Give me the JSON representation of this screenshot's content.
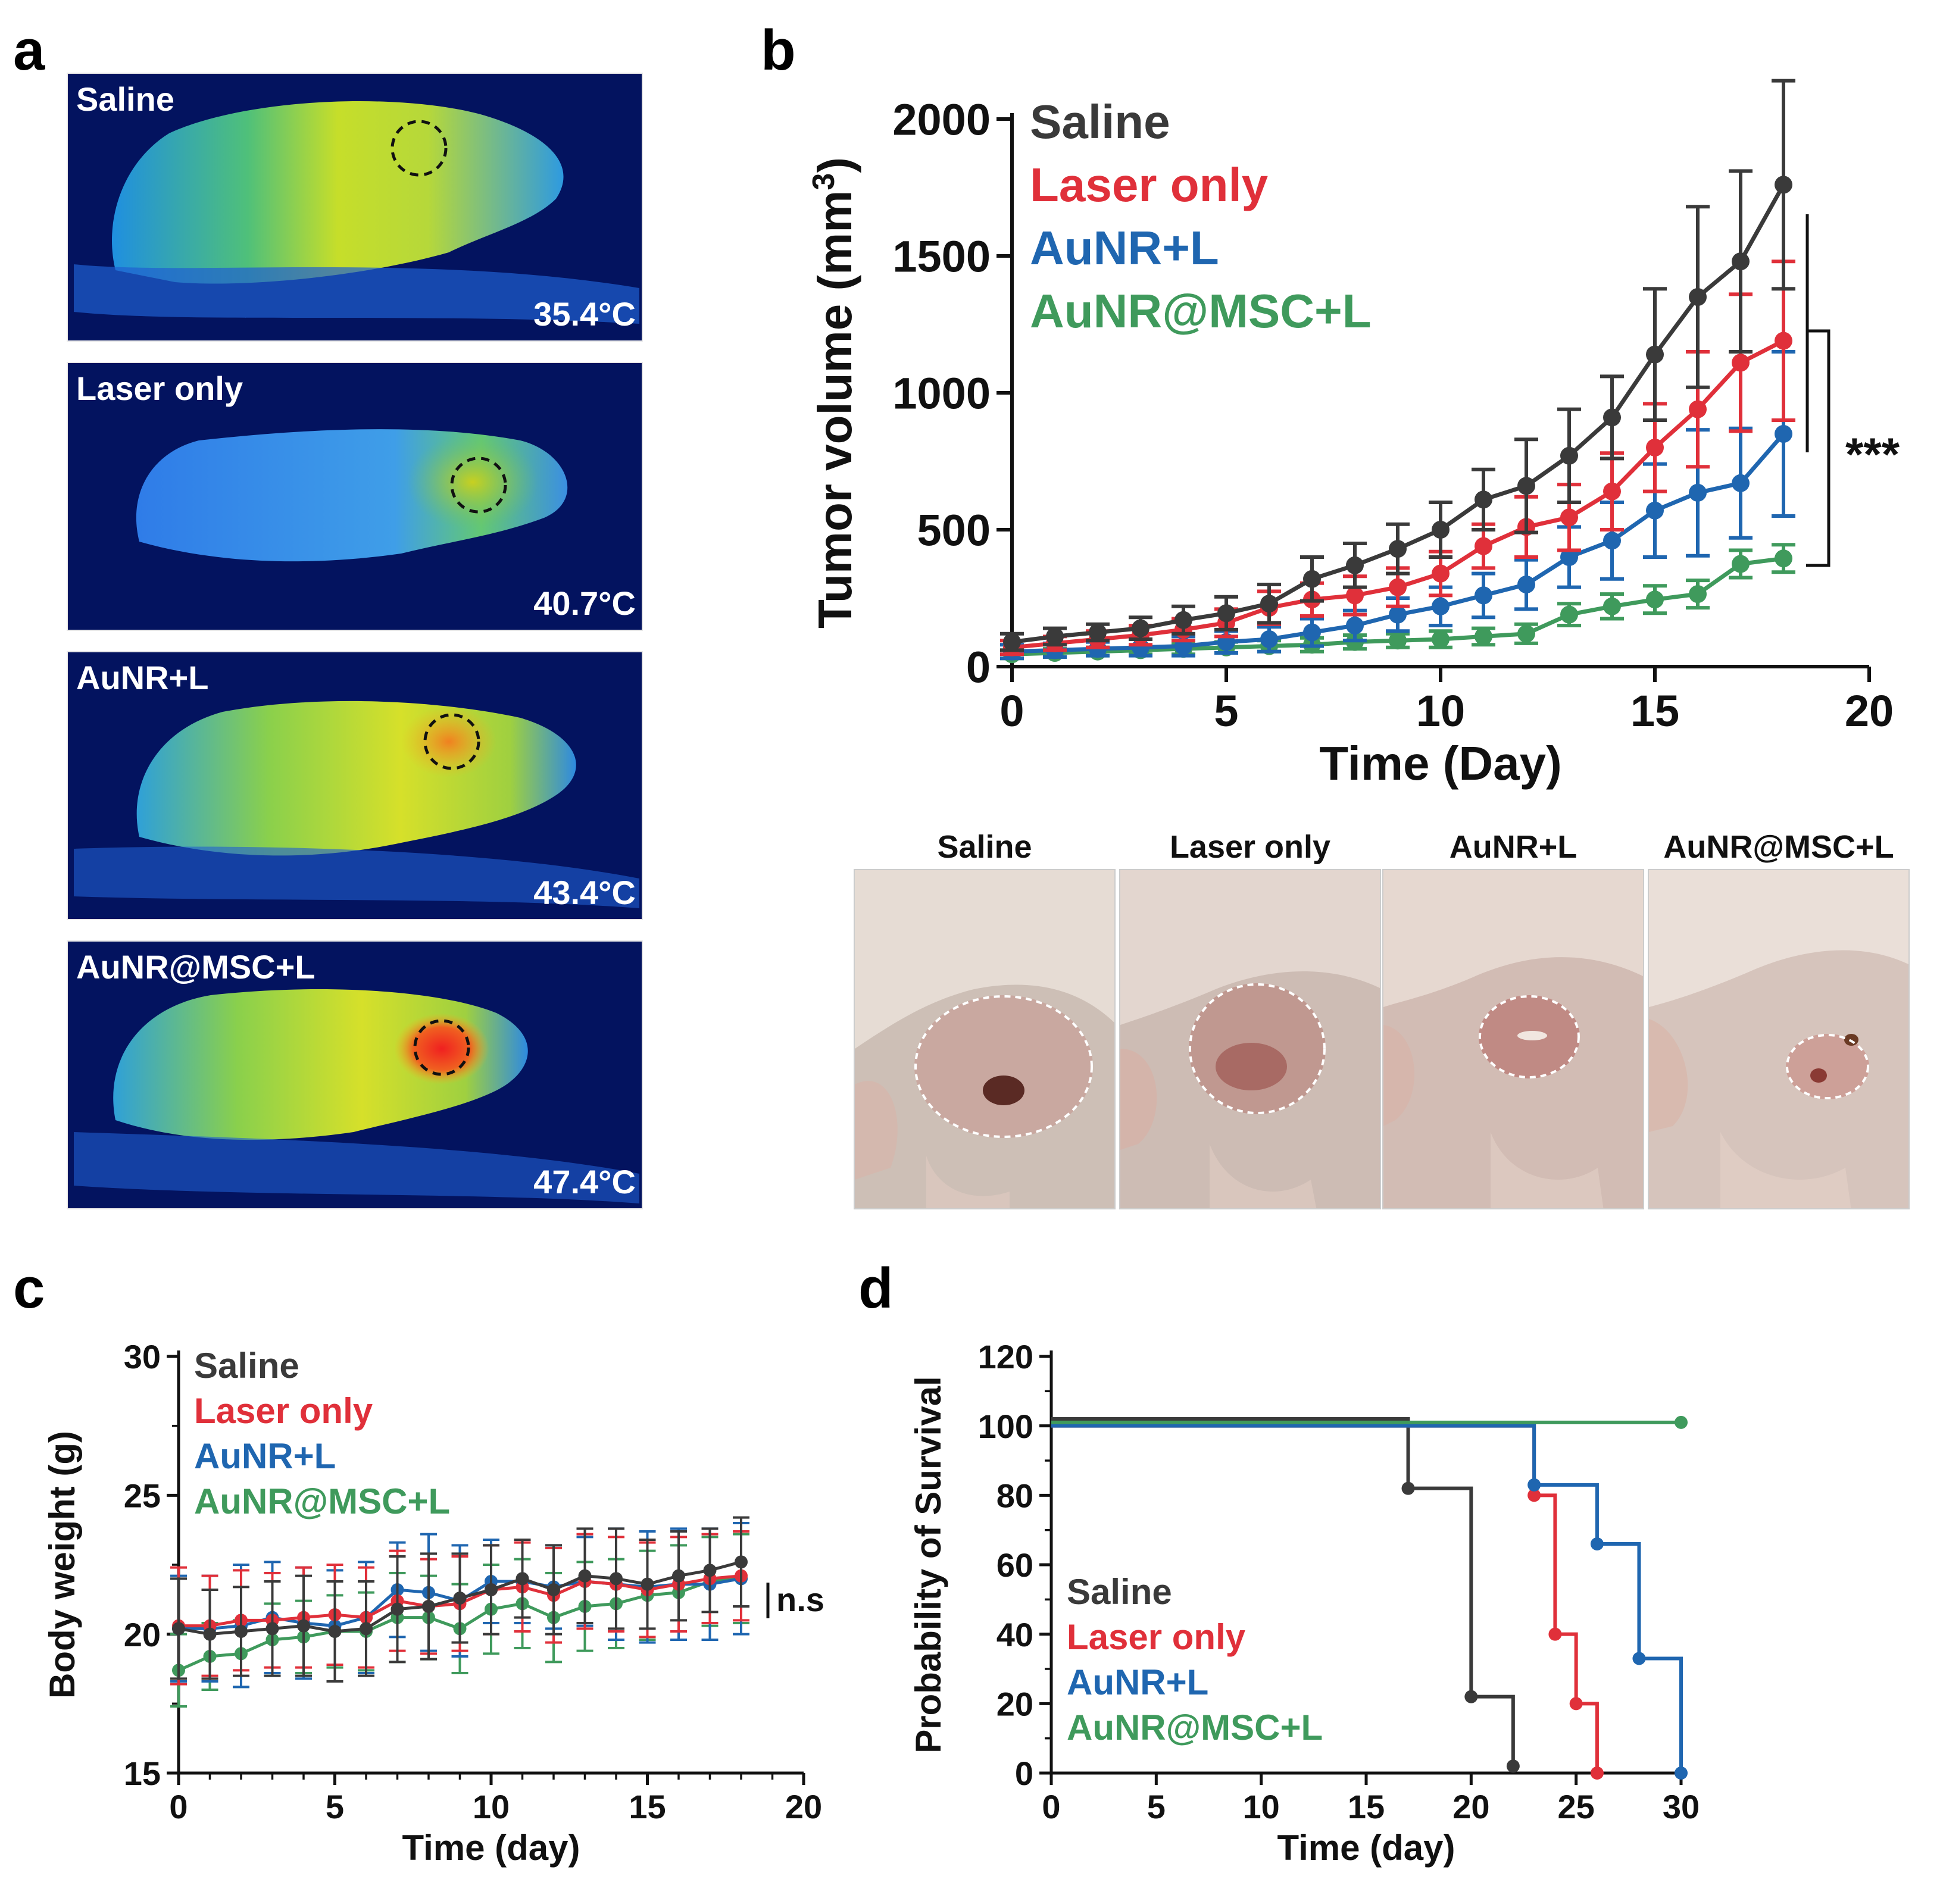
{
  "panels": {
    "a": "a",
    "b": "b",
    "c": "c",
    "d": "d"
  },
  "thermal_images": [
    {
      "label": "Saline",
      "temperature": "35.4°C"
    },
    {
      "label": "Laser only",
      "temperature": "40.7°C"
    },
    {
      "label": "AuNR+L",
      "temperature": "43.4°C"
    },
    {
      "label": "AuNR@MSC+L",
      "temperature": "47.4°C"
    }
  ],
  "photos": [
    {
      "label": "Saline"
    },
    {
      "label": "Laser only"
    },
    {
      "label": "AuNR+L"
    },
    {
      "label": "AuNR@MSC+L"
    }
  ],
  "colors": {
    "saline": "#3a3a3a",
    "laser": "#e0303a",
    "aunr": "#1f66b0",
    "msc": "#3f9a5c"
  },
  "chart_data": [
    {
      "id": "tumor-volume",
      "type": "line",
      "xlabel": "Time (Day)",
      "ylabel": "Tumor volume (mm³)",
      "ylabel_main": "Tumor volume (mm",
      "ylabel_sup": "3",
      "ylabel_close": ")",
      "xlim": [
        0,
        20
      ],
      "ylim": [
        0,
        2000
      ],
      "xticks": [
        0,
        5,
        10,
        15,
        20
      ],
      "yticks": [
        0,
        500,
        1000,
        1500,
        2000
      ],
      "x": [
        0,
        1,
        2,
        3,
        4,
        5,
        6,
        7,
        8,
        9,
        10,
        11,
        12,
        13,
        14,
        15,
        16,
        17,
        18
      ],
      "series": [
        {
          "name": "Saline",
          "color": "#3a3a3a",
          "values": [
            90,
            110,
            125,
            140,
            170,
            195,
            230,
            320,
            370,
            430,
            500,
            610,
            660,
            770,
            910,
            1140,
            1350,
            1480,
            1760
          ],
          "errors": [
            30,
            30,
            30,
            40,
            50,
            60,
            70,
            80,
            80,
            90,
            100,
            110,
            170,
            170,
            150,
            240,
            330,
            330,
            380
          ]
        },
        {
          "name": "Laser only",
          "color": "#e0303a",
          "values": [
            70,
            85,
            100,
            115,
            135,
            160,
            215,
            245,
            260,
            290,
            340,
            440,
            510,
            545,
            640,
            800,
            940,
            1110,
            1190
          ],
          "errors": [
            25,
            25,
            30,
            35,
            40,
            50,
            60,
            60,
            70,
            70,
            80,
            80,
            110,
            120,
            140,
            160,
            210,
            250,
            290
          ]
        },
        {
          "name": "AuNR+L",
          "color": "#1f66b0",
          "values": [
            55,
            60,
            65,
            70,
            75,
            90,
            100,
            125,
            150,
            190,
            220,
            260,
            300,
            400,
            460,
            570,
            635,
            670,
            850
          ],
          "errors": [
            25,
            25,
            25,
            30,
            35,
            40,
            45,
            50,
            55,
            60,
            70,
            80,
            90,
            110,
            140,
            170,
            230,
            200,
            300
          ]
        },
        {
          "name": "AuNR@MSC+L",
          "color": "#3f9a5c",
          "values": [
            45,
            50,
            55,
            60,
            65,
            70,
            75,
            80,
            90,
            95,
            100,
            110,
            120,
            190,
            220,
            245,
            265,
            375,
            395
          ],
          "errors": [
            15,
            15,
            15,
            15,
            20,
            20,
            20,
            25,
            25,
            25,
            30,
            30,
            35,
            40,
            45,
            50,
            50,
            50,
            50
          ]
        }
      ],
      "annotation": "***"
    },
    {
      "id": "body-weight",
      "type": "line",
      "xlabel": "Time (day)",
      "ylabel": "Body weight (g)",
      "xlim": [
        0,
        20
      ],
      "ylim": [
        15,
        30
      ],
      "xticks": [
        0,
        5,
        10,
        15,
        20
      ],
      "yticks": [
        15,
        20,
        25,
        30
      ],
      "x": [
        0,
        1,
        2,
        3,
        4,
        5,
        6,
        7,
        8,
        9,
        10,
        11,
        12,
        13,
        14,
        15,
        16,
        17,
        18
      ],
      "series": [
        {
          "name": "Saline",
          "color": "#3a3a3a",
          "values": [
            20.2,
            20.0,
            20.1,
            20.2,
            20.3,
            20.1,
            20.2,
            20.9,
            21.0,
            21.3,
            21.6,
            22.0,
            21.6,
            22.1,
            22.0,
            21.8,
            22.1,
            22.3,
            22.6
          ],
          "errors": [
            1.8,
            1.6,
            1.6,
            1.7,
            1.8,
            1.8,
            1.7,
            1.9,
            1.9,
            1.6,
            1.6,
            1.4,
            1.6,
            1.7,
            1.8,
            1.6,
            1.6,
            1.5,
            1.6
          ]
        },
        {
          "name": "Laser only",
          "color": "#e0303a",
          "values": [
            20.3,
            20.3,
            20.5,
            20.5,
            20.6,
            20.7,
            20.6,
            21.2,
            21.0,
            21.1,
            21.6,
            21.7,
            21.4,
            21.9,
            21.8,
            21.6,
            21.8,
            22.0,
            22.1
          ],
          "errors": [
            2.1,
            1.8,
            1.8,
            1.7,
            1.8,
            1.8,
            1.8,
            1.8,
            1.7,
            1.7,
            1.6,
            1.6,
            1.7,
            1.7,
            1.7,
            1.7,
            1.7,
            1.6,
            1.6
          ]
        },
        {
          "name": "AuNR+L",
          "color": "#1f66b0",
          "values": [
            20.2,
            20.2,
            20.3,
            20.6,
            20.4,
            20.3,
            20.6,
            21.6,
            21.5,
            21.2,
            21.9,
            21.9,
            21.7,
            21.9,
            21.8,
            21.7,
            21.8,
            21.8,
            22.0
          ],
          "errors": [
            1.9,
            1.9,
            2.2,
            2.0,
            2.0,
            2.0,
            2.0,
            1.7,
            2.1,
            2.0,
            1.5,
            1.5,
            1.5,
            1.6,
            2.0,
            2.0,
            2.0,
            2.0,
            2.0
          ]
        },
        {
          "name": "AuNR@MSC+L",
          "color": "#3f9a5c",
          "values": [
            18.7,
            19.2,
            19.3,
            19.8,
            19.9,
            20.1,
            20.1,
            20.6,
            20.6,
            20.2,
            20.9,
            21.1,
            20.6,
            21.0,
            21.1,
            21.4,
            21.5,
            21.9,
            22.0
          ],
          "errors": [
            1.3,
            1.2,
            1.2,
            1.3,
            1.3,
            1.3,
            1.4,
            1.6,
            1.5,
            1.6,
            1.6,
            1.6,
            1.6,
            1.6,
            1.6,
            1.6,
            1.7,
            1.6,
            1.6
          ]
        }
      ],
      "annotation": "n.s"
    },
    {
      "id": "survival",
      "type": "line",
      "xlabel": "Time (day)",
      "ylabel": "Probability of Survival",
      "xlim": [
        0,
        30
      ],
      "ylim": [
        0,
        120
      ],
      "xticks": [
        0,
        5,
        10,
        15,
        20,
        25,
        30
      ],
      "yticks": [
        0,
        20,
        40,
        60,
        80,
        100,
        120
      ],
      "series": [
        {
          "name": "Saline",
          "color": "#3a3a3a",
          "steps": [
            [
              0,
              102
            ],
            [
              17,
              82
            ],
            [
              20,
              22
            ],
            [
              22,
              2
            ]
          ]
        },
        {
          "name": "Laser only",
          "color": "#e0303a",
          "steps": [
            [
              0,
              100
            ],
            [
              23,
              80
            ],
            [
              24,
              40
            ],
            [
              25,
              20
            ],
            [
              26,
              0
            ]
          ]
        },
        {
          "name": "AuNR+L",
          "color": "#1f66b0",
          "steps": [
            [
              0,
              100
            ],
            [
              23,
              83
            ],
            [
              26,
              66
            ],
            [
              28,
              33
            ],
            [
              30,
              0
            ]
          ]
        },
        {
          "name": "AuNR@MSC+L",
          "color": "#3f9a5c",
          "steps": [
            [
              0,
              101
            ],
            [
              30,
              101
            ]
          ]
        }
      ]
    }
  ]
}
